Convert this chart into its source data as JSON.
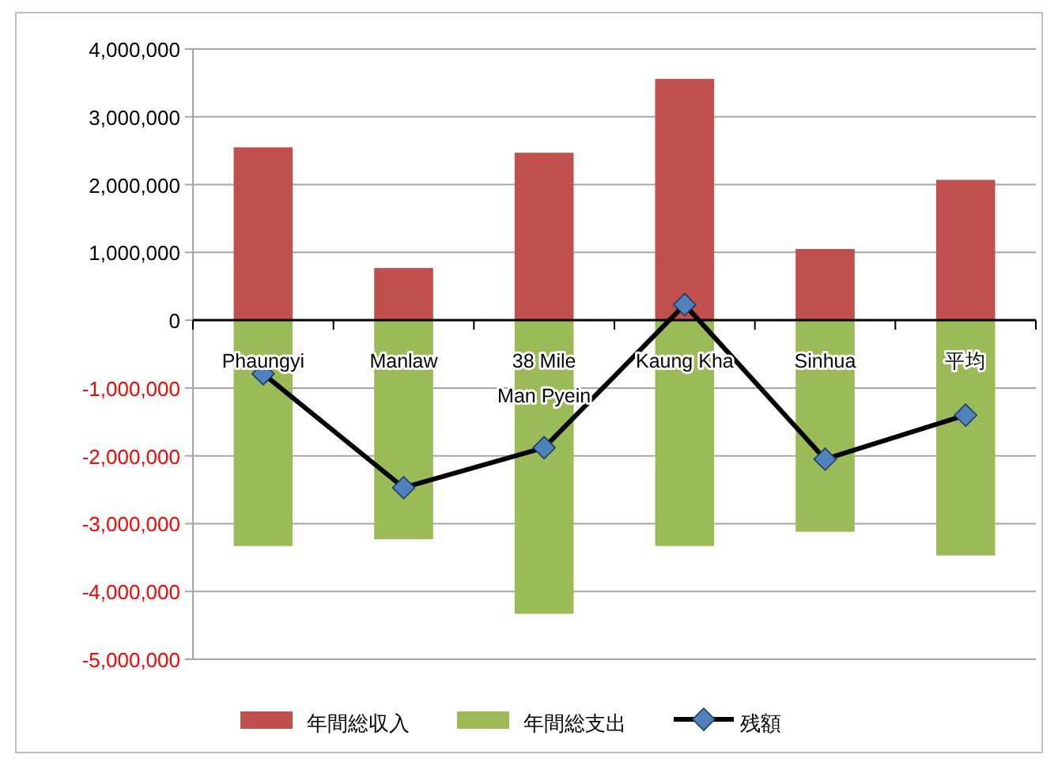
{
  "chart_data": {
    "type": "bar",
    "stacked": true,
    "grid": "y",
    "legend": "bottom",
    "marker": "diamond",
    "categories": [
      "Phaungyi",
      "Manlaw",
      "38 Mile Man Pyein",
      "Kaung Kha",
      "Sinhua",
      "平均"
    ],
    "ylim": [
      -5000000,
      4000000
    ],
    "yticks": [
      {
        "value": -5000000,
        "label": "-5,000,000"
      },
      {
        "value": -4000000,
        "label": "-4,000,000"
      },
      {
        "value": -3000000,
        "label": "-3,000,000"
      },
      {
        "value": -2000000,
        "label": "-2,000,000"
      },
      {
        "value": -1000000,
        "label": "-1,000,000"
      },
      0,
      {
        "value": 1000000,
        "label": "1,000,000"
      },
      {
        "value": 2000000,
        "label": "2,000,000"
      },
      {
        "value": 3000000,
        "label": "3,000,000"
      },
      {
        "value": 4000000,
        "label": "4,000,000"
      }
    ],
    "series": [
      {
        "name": "年間総収入",
        "color": "#c0504d",
        "values": [
          2550000,
          770000,
          2470000,
          3560000,
          1050000,
          2070000
        ]
      },
      {
        "name": "年間総支出",
        "color": "#9bbb59",
        "values": [
          -3330000,
          -3230000,
          -4330000,
          -3330000,
          -3120000,
          -3470000
        ]
      },
      {
        "name": "残額",
        "type": "line",
        "color": "#000000",
        "values": [
          -790000,
          -2470000,
          -1880000,
          230000,
          -2050000,
          -1400000
        ]
      }
    ]
  }
}
